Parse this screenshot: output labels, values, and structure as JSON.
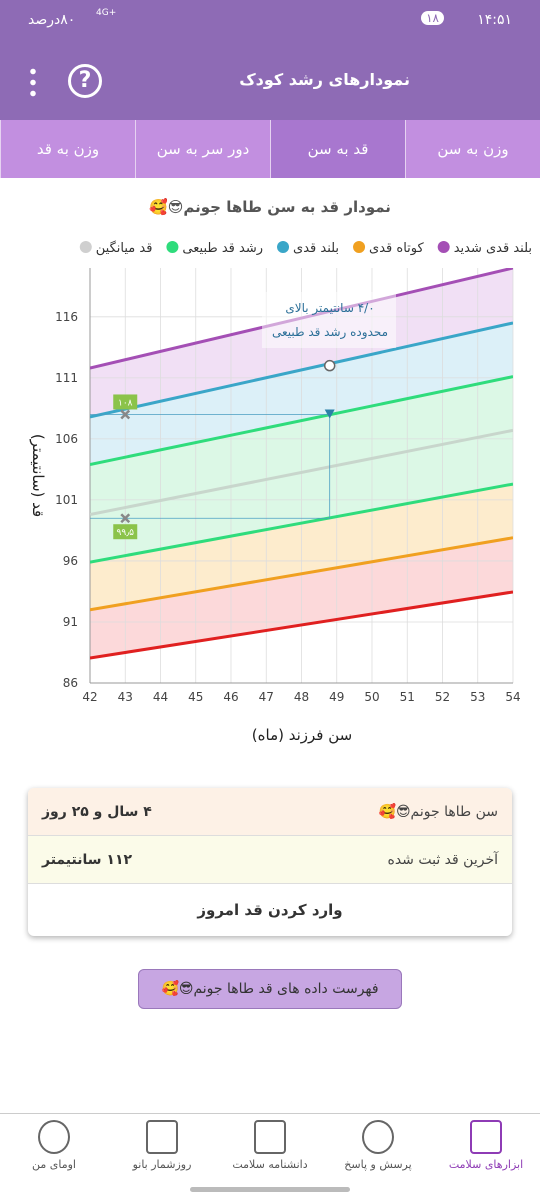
{
  "status": {
    "time": "۱۴:۵۱",
    "notifications": "۱۸",
    "network": "4G+",
    "battery": "۸۰درصد"
  },
  "header": {
    "title": "نمودارهای رشد کودک"
  },
  "tabs": [
    "وزن به سن",
    "قد به سن",
    "دور سر به سن",
    "وزن به قد"
  ],
  "active_tab": 1,
  "chart_data": {
    "type": "line",
    "title": "نمودار قد به سن طاها جونم😎🥰",
    "legend": [
      {
        "label": "بلند قدی شدید",
        "color": "#a44fb5"
      },
      {
        "label": "کوتاه قدی",
        "color": "#f0a020"
      },
      {
        "label": "بلند قدی",
        "color": "#3aa6c8"
      },
      {
        "label": "رشد قد طبیعی",
        "color": "#2fdc7c"
      },
      {
        "label": "قد میانگین",
        "color": "#cfcfcf"
      }
    ],
    "ylabel": "قد (سانتیمتر)",
    "xlabel": "سن فرزند (ماه)",
    "x": [
      42,
      54
    ],
    "xlim": [
      42,
      54
    ],
    "xticks": [
      42,
      43,
      44,
      45,
      46,
      47,
      48,
      49,
      50,
      51,
      52,
      53,
      54
    ],
    "ylim": [
      86,
      120
    ],
    "yticks": [
      86,
      91,
      96,
      101,
      106,
      111,
      116
    ],
    "grid": true,
    "series": [
      {
        "color": "#a44fb5",
        "fill": "#f1e0f5",
        "values": [
          111.8,
          120
        ]
      },
      {
        "color": "#3aa6c8",
        "fill": "#dcf0f8",
        "values": [
          107.8,
          115.5
        ]
      },
      {
        "color": "#2fdc7c",
        "fill": "#dcf8e6",
        "values": [
          103.9,
          111.1
        ]
      },
      {
        "color": "#c8d6cc",
        "values": [
          99.8,
          106.7
        ]
      },
      {
        "color": "#2fdc7c",
        "fill": "#fdeccd",
        "values": [
          95.9,
          102.3
        ]
      },
      {
        "color": "#f0a020",
        "fill": "#fcd9da",
        "values": [
          92,
          97.9
        ]
      },
      {
        "color": "#e02020",
        "fill": "#ffffff",
        "values": [
          88.05,
          93.46
        ]
      }
    ],
    "point": {
      "x": 48.8,
      "y": 112
    },
    "markers": [
      {
        "x": 43,
        "y": 108,
        "label": "۱۰۸"
      },
      {
        "x": 43,
        "y": 99.5,
        "label": "۹۹٫۵"
      }
    ],
    "annotation": [
      "۴/۰ سانتیمتر بالای",
      "محدوده رشد قد طبیعی"
    ]
  },
  "card": {
    "rows": [
      {
        "label": "سن طاها جونم😎🥰",
        "value": "۴ سال و ۲۵ روز"
      },
      {
        "label": "آخرین قد ثبت شده",
        "value": "۱۱۲ سانتیمتر"
      }
    ],
    "button": "وارد کردن قد امروز"
  },
  "list_button": "فهرست داده های قد طاها جونم😎🥰",
  "nav": [
    "ابزارهای سلامت",
    "پرسش و پاسخ",
    "دانشنامه سلامت",
    "روزشمار بانو",
    "اومای من"
  ]
}
